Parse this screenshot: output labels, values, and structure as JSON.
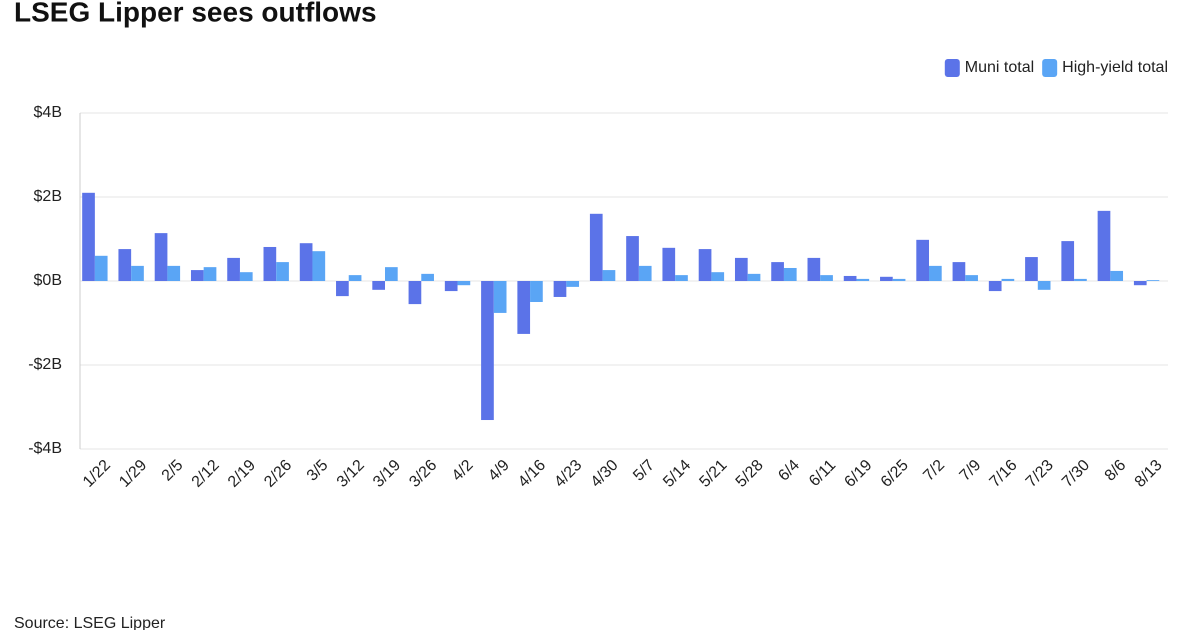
{
  "chart_data": {
    "type": "bar",
    "title": "LSEG Lipper sees outflows",
    "source": "Source: LSEG Lipper",
    "categories": [
      "1/22",
      "1/29",
      "2/5",
      "2/12",
      "2/19",
      "2/26",
      "3/5",
      "3/12",
      "3/19",
      "3/26",
      "4/2",
      "4/9",
      "4/16",
      "4/23",
      "4/30",
      "5/7",
      "5/14",
      "5/21",
      "5/28",
      "6/4",
      "6/11",
      "6/19",
      "6/25",
      "7/2",
      "7/9",
      "7/16",
      "7/23",
      "7/30",
      "8/6",
      "8/13"
    ],
    "series": [
      {
        "name": "Muni total",
        "color": "#5b73e8",
        "values": [
          2.1,
          0.76,
          1.14,
          0.26,
          0.55,
          0.81,
          0.9,
          -0.36,
          -0.21,
          -0.55,
          -0.24,
          -3.31,
          -1.26,
          -0.38,
          1.6,
          1.07,
          0.79,
          0.76,
          0.55,
          0.45,
          0.55,
          0.12,
          0.1,
          0.98,
          0.45,
          -0.24,
          0.57,
          0.95,
          1.67,
          -0.1
        ]
      },
      {
        "name": "High-yield total",
        "color": "#5aa5f5",
        "values": [
          0.6,
          0.36,
          0.36,
          0.33,
          0.21,
          0.45,
          0.71,
          0.14,
          0.33,
          0.17,
          -0.1,
          -0.76,
          -0.5,
          -0.14,
          0.26,
          0.36,
          0.14,
          0.21,
          0.17,
          0.31,
          0.14,
          0.05,
          0.05,
          0.36,
          0.14,
          0.05,
          -0.21,
          0.05,
          0.24,
          0.02
        ]
      }
    ],
    "ylim": [
      -4,
      4
    ],
    "yticks": [
      {
        "value": -4,
        "label": "-$4B"
      },
      {
        "value": -2,
        "label": "-$2B"
      },
      {
        "value": 0,
        "label": "$0B"
      },
      {
        "value": 2,
        "label": "$2B"
      },
      {
        "value": 4,
        "label": "$4B"
      }
    ],
    "grid": true,
    "legend": "top-right"
  }
}
